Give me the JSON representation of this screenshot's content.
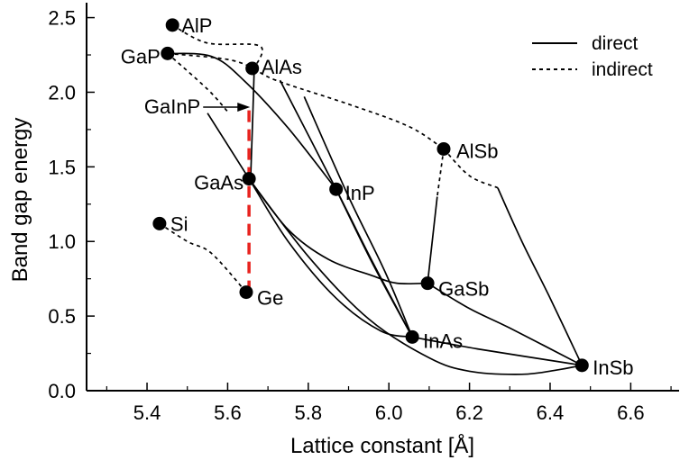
{
  "chart_data": {
    "type": "scatter",
    "xlabel": "Lattice constant [Å]",
    "ylabel": "Band gap energy",
    "xlim": [
      5.25,
      6.72
    ],
    "ylim": [
      0.0,
      2.6
    ],
    "xticks": [
      5.4,
      5.6,
      5.8,
      6.0,
      6.2,
      6.4,
      6.6
    ],
    "yticks": [
      0.0,
      0.5,
      1.0,
      1.5,
      2.0,
      2.5
    ],
    "xtick_labels": [
      "5.4",
      "5.6",
      "5.8",
      "6.0",
      "6.2",
      "6.4",
      "6.6"
    ],
    "ytick_labels": [
      "0.0",
      "0.5",
      "1.0",
      "1.5",
      "2.0",
      "2.5"
    ],
    "points": [
      {
        "label": "AlP",
        "x": 5.463,
        "y": 2.45
      },
      {
        "label": "GaP",
        "x": 5.451,
        "y": 2.26
      },
      {
        "label": "AlAs",
        "x": 5.661,
        "y": 2.16
      },
      {
        "label": "AlSb",
        "x": 6.136,
        "y": 1.62
      },
      {
        "label": "GaAs",
        "x": 5.653,
        "y": 1.42
      },
      {
        "label": "InP",
        "x": 5.869,
        "y": 1.35
      },
      {
        "label": "Si",
        "x": 5.431,
        "y": 1.12
      },
      {
        "label": "GaSb",
        "x": 6.096,
        "y": 0.72
      },
      {
        "label": "Ge",
        "x": 5.646,
        "y": 0.66
      },
      {
        "label": "InAs",
        "x": 6.058,
        "y": 0.36
      },
      {
        "label": "InSb",
        "x": 6.479,
        "y": 0.17
      }
    ],
    "annotations": [
      {
        "text": "GaInP",
        "x": 5.66,
        "y": 1.9
      }
    ],
    "legend": {
      "placement": "top-right",
      "entries": [
        {
          "label": "direct",
          "style": "solid"
        },
        {
          "label": "indirect",
          "style": "dashed"
        }
      ]
    },
    "curves": [
      {
        "style": "direct",
        "points": [
          [
            5.451,
            2.26
          ],
          [
            5.56,
            2.24
          ],
          [
            5.64,
            2.08
          ],
          [
            5.75,
            1.76
          ],
          [
            5.869,
            1.35
          ]
        ]
      },
      {
        "style": "direct",
        "points": [
          [
            5.55,
            1.86
          ],
          [
            5.653,
            1.42
          ],
          [
            5.75,
            1.0
          ],
          [
            5.869,
            0.62
          ],
          [
            5.98,
            0.4
          ],
          [
            6.058,
            0.36
          ]
        ]
      },
      {
        "style": "direct",
        "points": [
          [
            5.653,
            1.42
          ],
          [
            5.75,
            1.08
          ],
          [
            5.85,
            0.88
          ],
          [
            5.96,
            0.77
          ],
          [
            6.02,
            0.72
          ],
          [
            6.096,
            0.72
          ]
        ]
      },
      {
        "style": "direct",
        "points": [
          [
            5.653,
            1.42
          ],
          [
            5.8,
            0.9
          ],
          [
            5.95,
            0.48
          ],
          [
            6.1,
            0.22
          ],
          [
            6.2,
            0.13
          ],
          [
            6.33,
            0.11
          ],
          [
            6.42,
            0.14
          ],
          [
            6.479,
            0.17
          ]
        ]
      },
      {
        "style": "direct",
        "points": [
          [
            5.869,
            1.35
          ],
          [
            5.96,
            0.85
          ],
          [
            6.058,
            0.36
          ]
        ]
      },
      {
        "style": "direct",
        "points": [
          [
            5.73,
            2.08
          ],
          [
            5.869,
            1.35
          ],
          [
            5.96,
            0.86
          ],
          [
            6.058,
            0.36
          ]
        ]
      },
      {
        "style": "direct",
        "points": [
          [
            5.79,
            1.97
          ],
          [
            5.9,
            1.3
          ],
          [
            5.99,
            0.8
          ],
          [
            6.058,
            0.36
          ]
        ]
      },
      {
        "style": "direct",
        "points": [
          [
            6.058,
            0.36
          ],
          [
            6.22,
            0.28
          ],
          [
            6.479,
            0.17
          ]
        ]
      },
      {
        "style": "direct",
        "points": [
          [
            6.096,
            0.72
          ],
          [
            6.12,
            1.3
          ]
        ]
      },
      {
        "style": "direct",
        "points": [
          [
            6.096,
            0.72
          ],
          [
            6.2,
            0.55
          ],
          [
            6.3,
            0.42
          ],
          [
            6.479,
            0.17
          ]
        ]
      },
      {
        "style": "direct",
        "points": [
          [
            6.27,
            1.36
          ],
          [
            6.33,
            1.0
          ],
          [
            6.4,
            0.62
          ],
          [
            6.479,
            0.17
          ]
        ]
      },
      {
        "style": "direct",
        "points": [
          [
            5.657,
            1.42
          ],
          [
            5.663,
            1.9
          ],
          [
            5.666,
            2.16
          ]
        ]
      },
      {
        "style": "indirect",
        "points": [
          [
            5.463,
            2.45
          ],
          [
            5.55,
            2.33
          ],
          [
            5.68,
            2.31
          ],
          [
            5.666,
            2.16
          ]
        ]
      },
      {
        "style": "indirect",
        "points": [
          [
            5.451,
            2.26
          ],
          [
            5.6,
            2.22
          ],
          [
            5.666,
            2.16
          ]
        ]
      },
      {
        "style": "indirect",
        "points": [
          [
            5.451,
            2.26
          ],
          [
            5.55,
            2.02
          ],
          [
            5.6,
            1.87
          ]
        ]
      },
      {
        "style": "indirect",
        "points": [
          [
            5.666,
            2.16
          ],
          [
            5.72,
            2.08
          ],
          [
            5.9,
            1.92
          ],
          [
            6.05,
            1.77
          ],
          [
            6.136,
            1.62
          ]
        ]
      },
      {
        "style": "indirect",
        "points": [
          [
            6.136,
            1.62
          ],
          [
            6.12,
            1.3
          ]
        ]
      },
      {
        "style": "indirect",
        "points": [
          [
            6.136,
            1.62
          ],
          [
            6.2,
            1.44
          ],
          [
            6.27,
            1.36
          ]
        ]
      },
      {
        "style": "indirect",
        "points": [
          [
            5.431,
            1.12
          ],
          [
            5.5,
            1.0
          ],
          [
            5.56,
            0.92
          ],
          [
            5.646,
            0.66
          ]
        ]
      }
    ],
    "alloy_line": {
      "color": "#e8231f",
      "x": 5.653,
      "y_from": 0.66,
      "y_to": 1.9
    }
  }
}
